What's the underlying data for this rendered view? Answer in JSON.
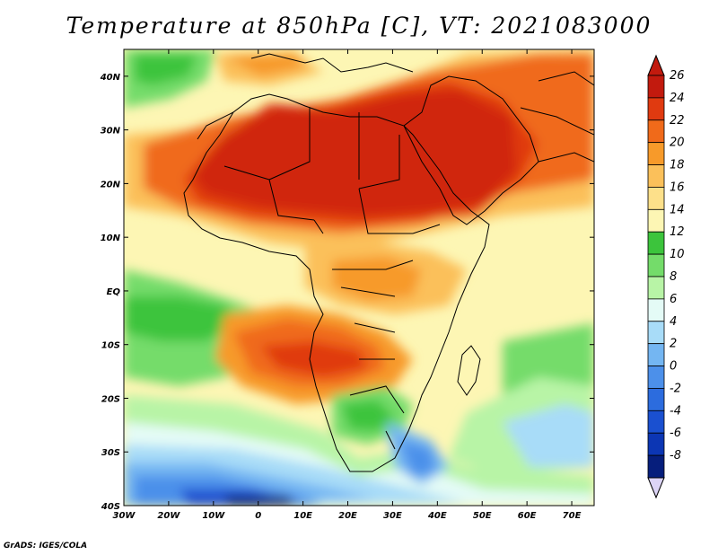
{
  "title": "Temperature at 850hPa [C], VT: 2021083000",
  "credit": "GrADS: IGES/COLA",
  "map": {
    "lon_range": [
      -30,
      75
    ],
    "lat_range": [
      -40,
      45
    ],
    "lon_ticks": [
      {
        "value": -30,
        "label": "30W"
      },
      {
        "value": -20,
        "label": "20W"
      },
      {
        "value": -10,
        "label": "10W"
      },
      {
        "value": 0,
        "label": "0"
      },
      {
        "value": 10,
        "label": "10E"
      },
      {
        "value": 20,
        "label": "20E"
      },
      {
        "value": 30,
        "label": "30E"
      },
      {
        "value": 40,
        "label": "40E"
      },
      {
        "value": 50,
        "label": "50E"
      },
      {
        "value": 60,
        "label": "60E"
      },
      {
        "value": 70,
        "label": "70E"
      }
    ],
    "lat_ticks": [
      {
        "value": 40,
        "label": "40N"
      },
      {
        "value": 30,
        "label": "30N"
      },
      {
        "value": 20,
        "label": "20N"
      },
      {
        "value": 10,
        "label": "10N"
      },
      {
        "value": 0,
        "label": "EQ"
      },
      {
        "value": -10,
        "label": "10S"
      },
      {
        "value": -20,
        "label": "20S"
      },
      {
        "value": -30,
        "label": "30S"
      },
      {
        "value": -40,
        "label": "40S"
      }
    ]
  },
  "colorbar": {
    "levels": [
      {
        "label": "26",
        "color": "#c21a0e"
      },
      {
        "label": "24",
        "color": "#e03a10"
      },
      {
        "label": "22",
        "color": "#f06a1a"
      },
      {
        "label": "20",
        "color": "#f79a2a"
      },
      {
        "label": "18",
        "color": "#fbc05a"
      },
      {
        "label": "16",
        "color": "#fde08a"
      },
      {
        "label": "14",
        "color": "#fdf6b4"
      },
      {
        "label": "12",
        "color": "#3cc43c"
      },
      {
        "label": "10",
        "color": "#74dc6a"
      },
      {
        "label": "8",
        "color": "#b8f4a6"
      },
      {
        "label": "6",
        "color": "#e4fbf6"
      },
      {
        "label": "4",
        "color": "#a8dcf8"
      },
      {
        "label": "2",
        "color": "#74b6f2"
      },
      {
        "label": "0",
        "color": "#4c90ea"
      },
      {
        "label": "-2",
        "color": "#2c6cde"
      },
      {
        "label": "-4",
        "color": "#1a50d0"
      },
      {
        "label": "-6",
        "color": "#0c36b4"
      },
      {
        "label": "-8",
        "color": "#061e7c"
      }
    ],
    "top_color": "#c21a0e",
    "bottom_color": "#dcd4f6"
  }
}
